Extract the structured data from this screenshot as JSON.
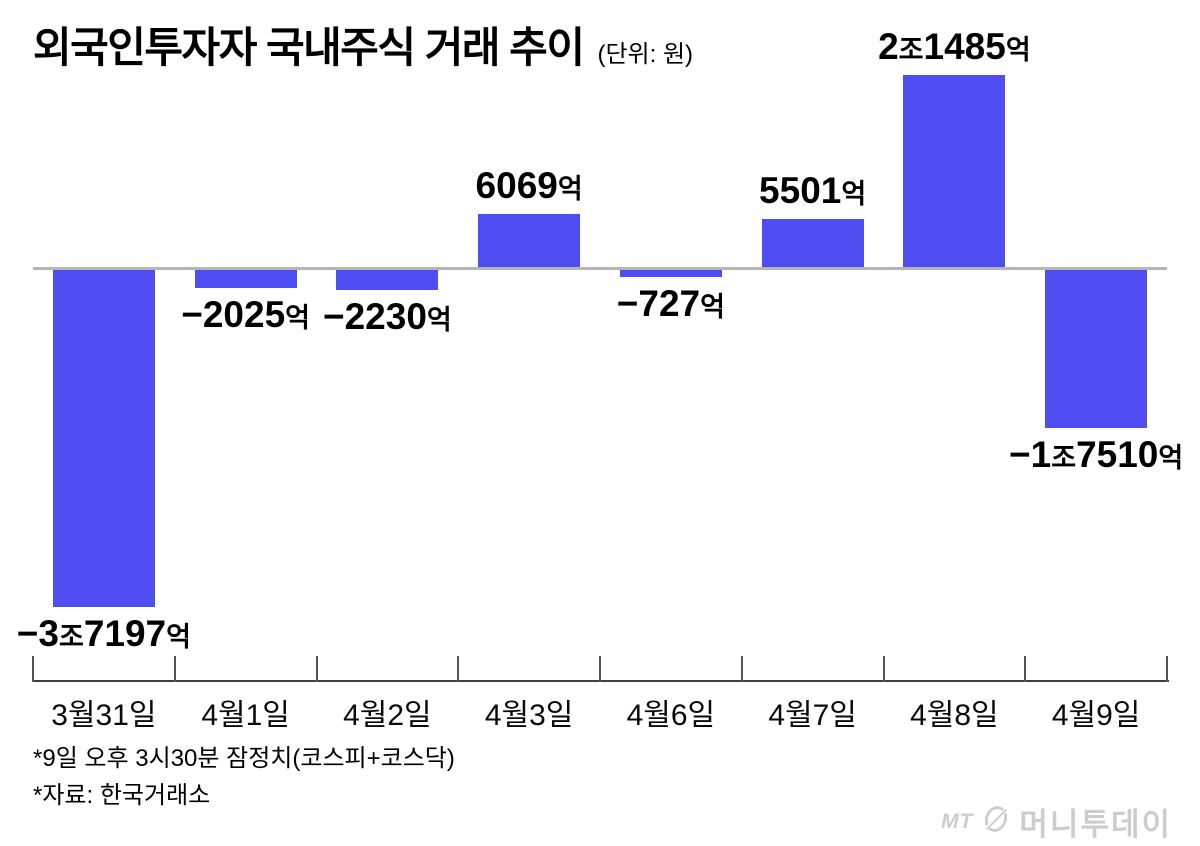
{
  "header": {
    "title": "외국인투자자 국내주식 거래 추이",
    "unit_note": "(단위: 원)"
  },
  "chart_data": {
    "type": "bar",
    "title": "외국인투자자 국내주식 거래 추이",
    "unit": "원",
    "value_scale": "억 원",
    "categories": [
      "3월31일",
      "4월1일",
      "4월2일",
      "4월3일",
      "4월6일",
      "4월7일",
      "4월8일",
      "4월9일"
    ],
    "values": [
      -37197,
      -2025,
      -2230,
      6069,
      -727,
      5501,
      21485,
      -17510
    ],
    "bar_labels": [
      [
        {
          "t": "−3",
          "big": true
        },
        {
          "t": "조",
          "big": false
        },
        {
          "t": "7197",
          "big": true
        },
        {
          "t": "억",
          "big": false
        }
      ],
      [
        {
          "t": "−2025",
          "big": true
        },
        {
          "t": "억",
          "big": false
        }
      ],
      [
        {
          "t": "−2230",
          "big": true
        },
        {
          "t": "억",
          "big": false
        }
      ],
      [
        {
          "t": "6069",
          "big": true
        },
        {
          "t": "억",
          "big": false
        }
      ],
      [
        {
          "t": "−727",
          "big": true
        },
        {
          "t": "억",
          "big": false
        }
      ],
      [
        {
          "t": "5501",
          "big": true
        },
        {
          "t": "억",
          "big": false
        }
      ],
      [
        {
          "t": "2",
          "big": true
        },
        {
          "t": "조",
          "big": false
        },
        {
          "t": "1485",
          "big": true
        },
        {
          "t": "억",
          "big": false
        }
      ],
      [
        {
          "t": "−1",
          "big": true
        },
        {
          "t": "조",
          "big": false
        },
        {
          "t": "7510",
          "big": true
        },
        {
          "t": "억",
          "big": false
        }
      ]
    ],
    "ylim": [
      -40000,
      25000
    ],
    "grid": false,
    "legend": "none",
    "zero_line": true
  },
  "footnotes": [
    "*9일 오후 3시30분 잠정치(코스피+코스닥)",
    "*자료: 한국거래소"
  ],
  "logo": {
    "mt": "MT",
    "brand": "머니투데이",
    "icon": "circle-slash"
  },
  "colors": {
    "bar": "#4e4df2",
    "zero_line": "#b4b4b4",
    "axis_line": "#3f3f3f",
    "tick": "#555555",
    "label_text": "#000000",
    "logo": "#cccccc"
  }
}
